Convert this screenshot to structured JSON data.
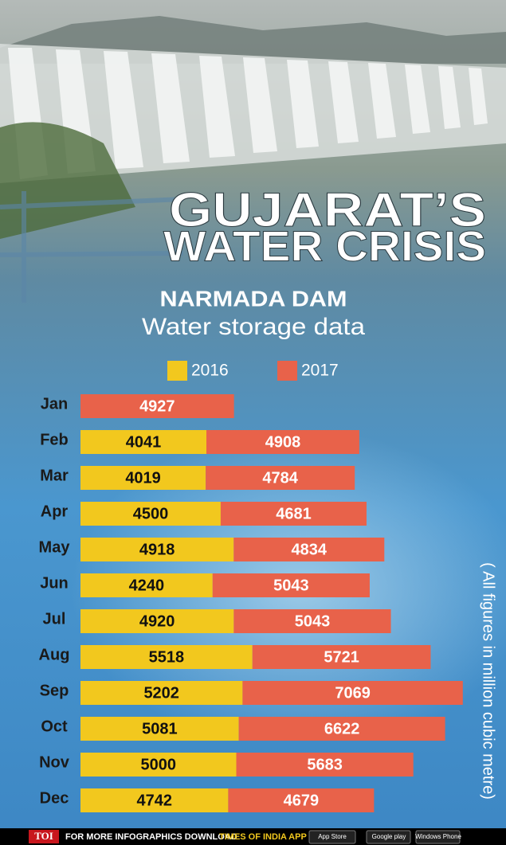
{
  "chart_data": {
    "type": "stacked-bar-horizontal",
    "title_lines": [
      "GUJARAT’S",
      "WATER CRISIS"
    ],
    "subtitle": "NARMADA DAM",
    "subtitle2": "Water storage data",
    "note": "( All figures in million cubic metre)",
    "categories": [
      "Jan",
      "Feb",
      "Mar",
      "Apr",
      "May",
      "Jun",
      "Jul",
      "Aug",
      "Sep",
      "Oct",
      "Nov",
      "Dec"
    ],
    "series": [
      {
        "name": "2016",
        "color": "#f2c81e",
        "values": [
          null,
          4041,
          4019,
          4500,
          4918,
          4240,
          4920,
          5518,
          5202,
          5081,
          5000,
          4742
        ]
      },
      {
        "name": "2017",
        "color": "#e8624a",
        "values": [
          4927,
          4908,
          4784,
          4681,
          4834,
          5043,
          5043,
          5721,
          7069,
          6622,
          5683,
          4679
        ]
      }
    ]
  },
  "footer": {
    "brand": "TOI",
    "text": "FOR MORE  INFOGRAPHICS DOWNLOAD",
    "app": "TIMES OF INDIA APP",
    "badges": [
      "App Store",
      "Google play",
      "Windows Phone"
    ]
  }
}
